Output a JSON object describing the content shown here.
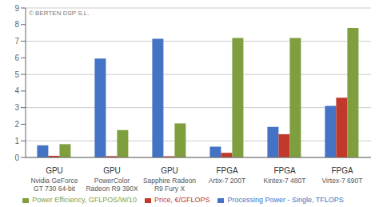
{
  "chart_data": {
    "type": "bar",
    "categories": [
      [
        "GPU",
        "Nvidia GeForce\nGT 730 64-bit"
      ],
      [
        "GPU",
        "PowerColor\nRadeon R9 390X"
      ],
      [
        "GPU",
        "Sapphire Radeon\nR9 Fury X"
      ],
      [
        "FPGA",
        "Artix-7 200T"
      ],
      [
        "FPGA",
        "Kintex-7 480T"
      ],
      [
        "FPGA",
        "Virtex-7 690T"
      ]
    ],
    "series": [
      {
        "name": "Processing Power - Single, TFLOPS",
        "color": "#4472C4",
        "values": [
          0.73,
          5.95,
          7.15,
          0.65,
          1.84,
          3.1
        ]
      },
      {
        "name": "Price, €/GFLOPS",
        "color": "#C0392B",
        "values": [
          0.1,
          0.08,
          0.07,
          0.28,
          1.4,
          3.6
        ]
      },
      {
        "name": "Power Efficiency, GFLPOS/W/10",
        "color": "#7F9F3F",
        "values": [
          0.8,
          1.65,
          2.05,
          7.2,
          7.2,
          7.8
        ]
      }
    ],
    "ylim": [
      0,
      9
    ],
    "yticks": [
      0,
      1,
      2,
      3,
      4,
      5,
      6,
      7,
      8,
      9
    ],
    "grid": true,
    "legend": "bottom",
    "annotations": [
      "© BERTEN DSP S.L."
    ]
  }
}
